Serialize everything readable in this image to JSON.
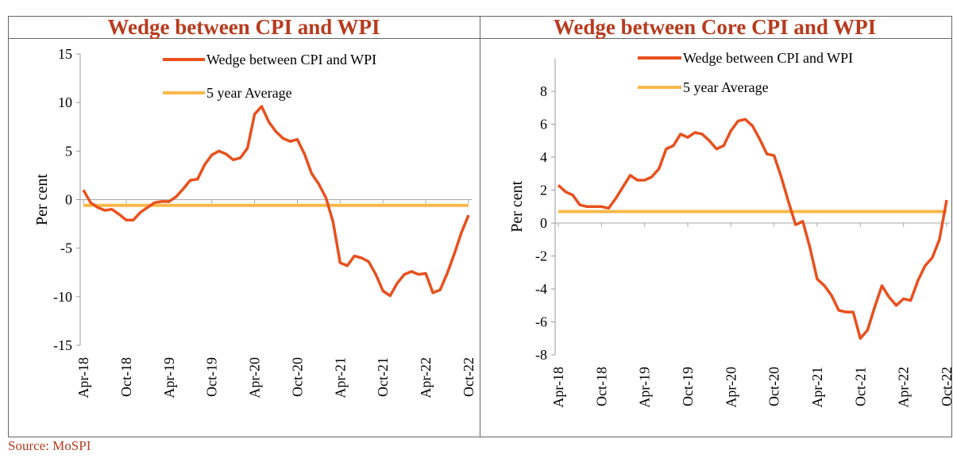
{
  "chart_data": [
    {
      "type": "line",
      "title": "Wedge between CPI and WPI",
      "y_label": "Per cent",
      "categories": [
        "Apr-18",
        null,
        null,
        null,
        null,
        null,
        "Oct-18",
        null,
        null,
        null,
        null,
        null,
        "Apr-19",
        null,
        null,
        null,
        null,
        null,
        "Oct-19",
        null,
        null,
        null,
        null,
        null,
        "Apr-20",
        null,
        null,
        null,
        null,
        null,
        "Oct-20",
        null,
        null,
        null,
        null,
        null,
        "Apr-21",
        null,
        null,
        null,
        null,
        null,
        "Oct-21",
        null,
        null,
        null,
        null,
        null,
        "Apr-22",
        null,
        null,
        null,
        null,
        null,
        "Oct-22"
      ],
      "series": [
        {
          "name": "Wedge between CPI and WPI",
          "color": "#e8501e",
          "values": [
            1.0,
            -0.3,
            -0.8,
            -1.1,
            -1.0,
            -1.5,
            -2.1,
            -2.1,
            -1.3,
            -0.8,
            -0.3,
            -0.2,
            -0.2,
            0.3,
            1.1,
            2.0,
            2.1,
            3.6,
            4.6,
            5.0,
            4.7,
            4.1,
            4.3,
            5.3,
            8.8,
            9.6,
            8.0,
            7.0,
            6.3,
            6.0,
            6.2,
            4.7,
            2.7,
            1.6,
            0.2,
            -2.3,
            -6.5,
            -6.8,
            -5.8,
            -6.0,
            -6.4,
            -7.7,
            -9.4,
            -9.9,
            -8.6,
            -7.7,
            -7.4,
            -7.7,
            -7.6,
            -9.6,
            -9.3,
            -7.6,
            -5.6,
            -3.4,
            -1.6
          ]
        },
        {
          "name": "5 year Average",
          "color": "#f9b84a",
          "values": [
            -0.6,
            -0.6,
            -0.6,
            -0.6,
            -0.6,
            -0.6,
            -0.6,
            -0.6,
            -0.6,
            -0.6,
            -0.6,
            -0.6,
            -0.6,
            -0.6,
            -0.6,
            -0.6,
            -0.6,
            -0.6,
            -0.6,
            -0.6,
            -0.6,
            -0.6,
            -0.6,
            -0.6,
            -0.6,
            -0.6,
            -0.6,
            -0.6,
            -0.6,
            -0.6,
            -0.6,
            -0.6,
            -0.6,
            -0.6,
            -0.6,
            -0.6,
            -0.6,
            -0.6,
            -0.6,
            -0.6,
            -0.6,
            -0.6,
            -0.6,
            -0.6,
            -0.6,
            -0.6,
            -0.6,
            -0.6,
            -0.6,
            -0.6,
            -0.6,
            -0.6,
            -0.6,
            -0.6,
            -0.6
          ]
        }
      ],
      "ylim": [
        -15,
        15
      ],
      "yticks": [
        -15,
        -10,
        -5,
        0,
        5,
        10,
        15
      ]
    },
    {
      "type": "line",
      "title": "Wedge between Core CPI and WPI",
      "y_label": "Per cent",
      "categories": [
        "Apr-18",
        null,
        null,
        null,
        null,
        null,
        "Oct-18",
        null,
        null,
        null,
        null,
        null,
        "Apr-19",
        null,
        null,
        null,
        null,
        null,
        "Oct-19",
        null,
        null,
        null,
        null,
        null,
        "Apr-20",
        null,
        null,
        null,
        null,
        null,
        "Oct-20",
        null,
        null,
        null,
        null,
        null,
        "Apr-21",
        null,
        null,
        null,
        null,
        null,
        "Oct-21",
        null,
        null,
        null,
        null,
        null,
        "Apr-22",
        null,
        null,
        null,
        null,
        null,
        "Oct-22"
      ],
      "series": [
        {
          "name": "Wedge between CPI and WPI",
          "color": "#e8501e",
          "values": [
            2.3,
            1.9,
            1.7,
            1.1,
            1.0,
            1.0,
            1.0,
            0.9,
            1.5,
            2.2,
            2.9,
            2.6,
            2.6,
            2.8,
            3.3,
            4.5,
            4.7,
            5.4,
            5.2,
            5.5,
            5.4,
            5.0,
            4.5,
            4.7,
            5.6,
            6.2,
            6.3,
            5.9,
            5.1,
            4.2,
            4.1,
            2.8,
            1.3,
            -0.1,
            0.1,
            -1.5,
            -3.4,
            -3.8,
            -4.4,
            -5.3,
            -5.4,
            -5.4,
            -7.0,
            -6.5,
            -5.1,
            -3.8,
            -4.5,
            -5.0,
            -4.6,
            -4.7,
            -3.5,
            -2.6,
            -2.1,
            -1.0,
            1.4
          ]
        },
        {
          "name": "5 year Average",
          "color": "#f9b84a",
          "values": [
            0.7,
            0.7,
            0.7,
            0.7,
            0.7,
            0.7,
            0.7,
            0.7,
            0.7,
            0.7,
            0.7,
            0.7,
            0.7,
            0.7,
            0.7,
            0.7,
            0.7,
            0.7,
            0.7,
            0.7,
            0.7,
            0.7,
            0.7,
            0.7,
            0.7,
            0.7,
            0.7,
            0.7,
            0.7,
            0.7,
            0.7,
            0.7,
            0.7,
            0.7,
            0.7,
            0.7,
            0.7,
            0.7,
            0.7,
            0.7,
            0.7,
            0.7,
            0.7,
            0.7,
            0.7,
            0.7,
            0.7,
            0.7,
            0.7,
            0.7,
            0.7,
            0.7,
            0.7,
            0.7,
            0.7
          ]
        }
      ],
      "ylim": [
        -8,
        10
      ],
      "yticks": [
        -8,
        -6,
        -4,
        -2,
        0,
        2,
        4,
        6,
        8
      ]
    }
  ],
  "source": "Source: MoSPI"
}
